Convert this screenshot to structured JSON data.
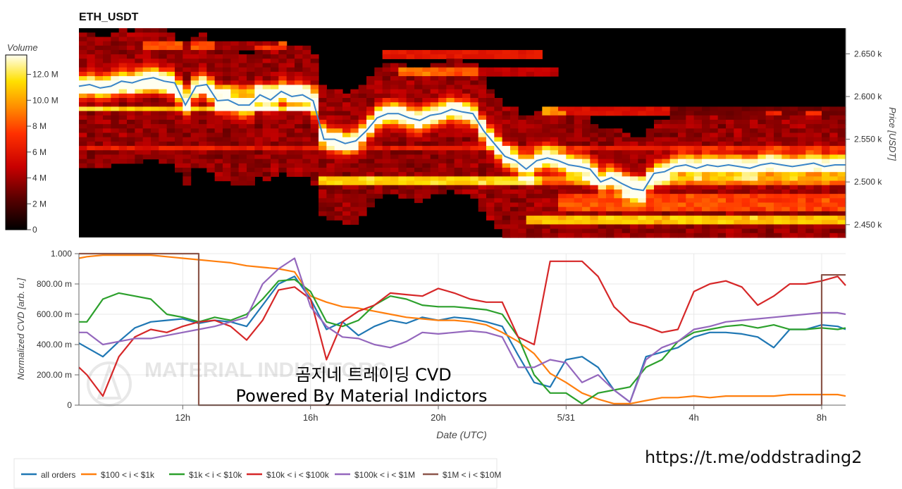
{
  "app": {
    "symbol": "ETH_USDT",
    "overlay_line1": "곰지네 트레이딩 CVD",
    "overlay_line2": "Powered By Material Indictors",
    "watermark": "MATERIAL INDICATORS",
    "link": "https://t.me/oddstrading2"
  },
  "colors": {
    "price_line": "#3a86c8",
    "background": "#ffffff",
    "heatmap_low": "#000000",
    "heatmap_high": "#ffffff"
  },
  "chart_data": [
    {
      "type": "heatmap",
      "title": "ETH_USDT",
      "ylabel": "Price [USDT]",
      "yticks": [
        "2.450 k",
        "2.500 k",
        "2.550 k",
        "2.600 k",
        "2.650 k"
      ],
      "ytick_values": [
        2450,
        2500,
        2550,
        2600,
        2650
      ],
      "ylim": [
        2435,
        2680
      ],
      "colorbar": {
        "label": "Volume",
        "ticks": [
          "0",
          "2 M",
          "4 M",
          "6 M",
          "8 M",
          "10.0 M",
          "12.0 M"
        ],
        "tick_values": [
          0,
          2,
          4,
          6,
          8,
          10,
          12
        ],
        "range": [
          0,
          13.5
        ]
      },
      "price_series": {
        "name": "price",
        "x": [
          0,
          0.5,
          1,
          1.5,
          2,
          2.5,
          3,
          3.5,
          4,
          4.5,
          5,
          5.5,
          6,
          6.5,
          7,
          7.5,
          8,
          8.5,
          9,
          9.5,
          10,
          10.5,
          11,
          11.5,
          12,
          12.5,
          13,
          13.5,
          14,
          14.5,
          15,
          15.5,
          16,
          16.5,
          17,
          17.5,
          18,
          18.5,
          19,
          19.5,
          20,
          20.5,
          21,
          21.5,
          22,
          22.5,
          23,
          23.5,
          24,
          24.5,
          25,
          25.5,
          26,
          26.5,
          27,
          27.5,
          28,
          28.5,
          29,
          29.5,
          30,
          30.5,
          31,
          31.5,
          32,
          32.5,
          33,
          33.5,
          34,
          34.5,
          35,
          35.5,
          36
        ],
        "y": [
          2612,
          2614,
          2610,
          2612,
          2618,
          2616,
          2620,
          2622,
          2618,
          2616,
          2590,
          2612,
          2614,
          2595,
          2596,
          2590,
          2590,
          2602,
          2596,
          2606,
          2600,
          2602,
          2595,
          2550,
          2550,
          2545,
          2548,
          2560,
          2575,
          2580,
          2580,
          2575,
          2572,
          2578,
          2580,
          2585,
          2582,
          2580,
          2560,
          2545,
          2530,
          2525,
          2515,
          2525,
          2528,
          2525,
          2520,
          2518,
          2515,
          2500,
          2505,
          2498,
          2492,
          2490,
          2510,
          2512,
          2518,
          2520,
          2516,
          2520,
          2518,
          2520,
          2518,
          2516,
          2520,
          2522,
          2520,
          2518,
          2520,
          2522,
          2518,
          2520,
          2520
        ]
      }
    },
    {
      "type": "line",
      "xlabel": "Date (UTC)",
      "ylabel": "Normalized CVD [arb. u.]",
      "ylim": [
        0,
        1.0
      ],
      "yticks": [
        "0",
        "200.00 m",
        "400.00 m",
        "600.00 m",
        "800.00 m",
        "1.000"
      ],
      "ytick_values": [
        0,
        0.2,
        0.4,
        0.6,
        0.8,
        1.0
      ],
      "xticks": [
        "12h",
        "16h",
        "20h",
        "5/31",
        "4h",
        "8h"
      ],
      "xtick_values": [
        12,
        16,
        20,
        24,
        28,
        32
      ],
      "xlim": [
        8.75,
        32.75
      ],
      "x": [
        8.75,
        9.0,
        9.5,
        10.0,
        10.5,
        11.0,
        11.5,
        12.0,
        12.5,
        13.0,
        13.5,
        14.0,
        14.5,
        15.0,
        15.5,
        16.0,
        16.5,
        17.0,
        17.5,
        18.0,
        18.5,
        19.0,
        19.5,
        20.0,
        20.5,
        21.0,
        21.5,
        22.0,
        22.5,
        23.0,
        23.5,
        24.0,
        24.5,
        25.0,
        25.5,
        26.0,
        26.5,
        27.0,
        27.5,
        28.0,
        28.5,
        29.0,
        29.5,
        30.0,
        30.5,
        31.0,
        31.5,
        32.0,
        32.5,
        32.75
      ],
      "series": [
        {
          "name": "all orders",
          "color": "#1f77b4",
          "values": [
            0.41,
            0.38,
            0.32,
            0.42,
            0.51,
            0.55,
            0.56,
            0.57,
            0.54,
            0.56,
            0.55,
            0.52,
            0.66,
            0.8,
            0.85,
            0.7,
            0.5,
            0.55,
            0.46,
            0.52,
            0.56,
            0.54,
            0.58,
            0.56,
            0.58,
            0.57,
            0.55,
            0.52,
            0.33,
            0.15,
            0.12,
            0.3,
            0.32,
            0.25,
            0.1,
            0.02,
            0.32,
            0.35,
            0.38,
            0.45,
            0.48,
            0.48,
            0.47,
            0.45,
            0.38,
            0.5,
            0.5,
            0.53,
            0.52,
            0.5
          ]
        },
        {
          "name": "$100 < i < $1k",
          "color": "#ff7f0e",
          "values": [
            0.97,
            0.98,
            0.99,
            0.99,
            0.99,
            0.99,
            0.98,
            0.97,
            0.96,
            0.95,
            0.94,
            0.92,
            0.91,
            0.9,
            0.88,
            0.72,
            0.68,
            0.65,
            0.64,
            0.62,
            0.6,
            0.58,
            0.57,
            0.56,
            0.56,
            0.55,
            0.53,
            0.48,
            0.42,
            0.34,
            0.21,
            0.15,
            0.08,
            0.04,
            0.01,
            0.01,
            0.03,
            0.05,
            0.05,
            0.06,
            0.05,
            0.06,
            0.06,
            0.06,
            0.06,
            0.07,
            0.07,
            0.07,
            0.07,
            0.06
          ]
        },
        {
          "name": "$1k < i < $10k",
          "color": "#2ca02c",
          "values": [
            0.55,
            0.55,
            0.7,
            0.74,
            0.72,
            0.7,
            0.6,
            0.58,
            0.55,
            0.58,
            0.56,
            0.6,
            0.7,
            0.82,
            0.83,
            0.75,
            0.55,
            0.52,
            0.56,
            0.66,
            0.72,
            0.7,
            0.66,
            0.65,
            0.65,
            0.64,
            0.63,
            0.6,
            0.45,
            0.2,
            0.08,
            0.08,
            0.01,
            0.08,
            0.1,
            0.12,
            0.25,
            0.3,
            0.42,
            0.48,
            0.5,
            0.52,
            0.53,
            0.51,
            0.53,
            0.5,
            0.5,
            0.51,
            0.5,
            0.51
          ]
        },
        {
          "name": "$10k < i < $100k",
          "color": "#d62728",
          "values": [
            0.25,
            0.2,
            0.06,
            0.32,
            0.45,
            0.5,
            0.48,
            0.52,
            0.55,
            0.56,
            0.52,
            0.43,
            0.56,
            0.76,
            0.78,
            0.7,
            0.3,
            0.55,
            0.62,
            0.66,
            0.74,
            0.73,
            0.72,
            0.77,
            0.74,
            0.7,
            0.68,
            0.68,
            0.45,
            0.4,
            0.95,
            0.95,
            0.95,
            0.85,
            0.65,
            0.55,
            0.52,
            0.48,
            0.5,
            0.75,
            0.8,
            0.82,
            0.78,
            0.66,
            0.72,
            0.8,
            0.8,
            0.82,
            0.85,
            0.79
          ]
        },
        {
          "name": "$100k < i < $1M",
          "color": "#9467bd",
          "values": [
            0.48,
            0.48,
            0.4,
            0.42,
            0.44,
            0.44,
            0.46,
            0.48,
            0.5,
            0.52,
            0.55,
            0.58,
            0.8,
            0.9,
            0.97,
            0.65,
            0.52,
            0.45,
            0.44,
            0.4,
            0.38,
            0.42,
            0.48,
            0.47,
            0.48,
            0.49,
            0.48,
            0.45,
            0.25,
            0.25,
            0.3,
            0.28,
            0.15,
            0.2,
            0.1,
            0.02,
            0.3,
            0.38,
            0.42,
            0.5,
            0.52,
            0.55,
            0.56,
            0.57,
            0.58,
            0.59,
            0.6,
            0.61,
            0.61,
            0.6
          ]
        },
        {
          "name": "$1M < i < $10M",
          "color": "#8c564b",
          "values": [
            1.0,
            1.0,
            1.0,
            1.0,
            1.0,
            1.0,
            1.0,
            1.0,
            0.0,
            0.0,
            0.0,
            0.0,
            0.0,
            0.0,
            0.0,
            0.0,
            0.0,
            0.0,
            0.0,
            0.0,
            0.0,
            0.0,
            0.0,
            0.0,
            0.0,
            0.0,
            0.0,
            0.0,
            0.0,
            0.0,
            0.0,
            0.0,
            0.0,
            0.0,
            0.0,
            0.0,
            0.0,
            0.0,
            0.0,
            0.0,
            0.0,
            0.0,
            0.0,
            0.0,
            0.0,
            0.0,
            0.0,
            0.86,
            0.86,
            0.86
          ]
        }
      ]
    }
  ]
}
